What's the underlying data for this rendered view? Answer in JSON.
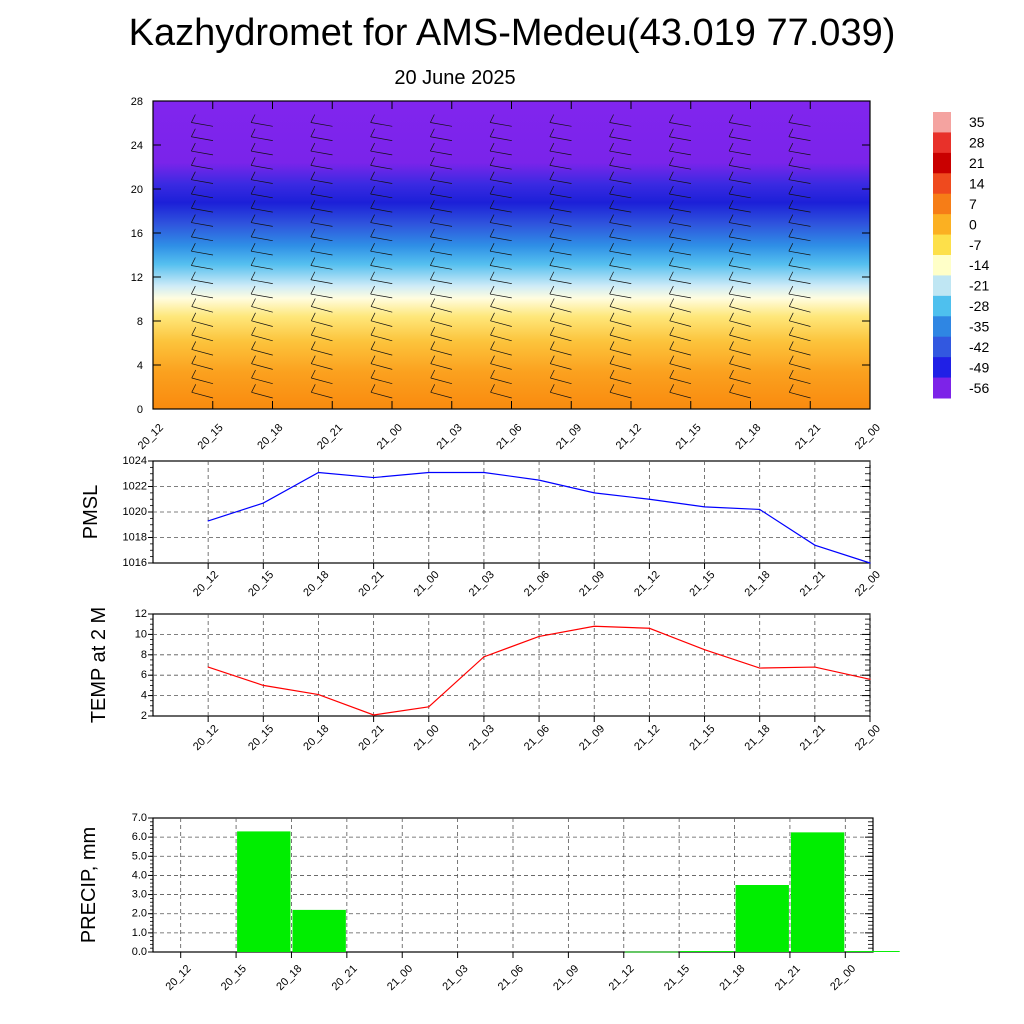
{
  "title": "Kazhydromet for AMS-Medeu(43.019 77.039)",
  "subtitle": "20 June 2025",
  "chart_data": [
    {
      "type": "heatmap",
      "name": "upper-air cross-section",
      "x": [
        "20_12",
        "20_15",
        "20_18",
        "20_21",
        "21_00",
        "21_03",
        "21_06",
        "21_09",
        "21_12",
        "21_15",
        "21_18",
        "21_21",
        "22_00"
      ],
      "ylim": [
        0,
        28
      ],
      "yticks": [
        0,
        4,
        8,
        12,
        16,
        20,
        24,
        28
      ],
      "colorbar": {
        "labels": [
          "35",
          "28",
          "21",
          "14",
          "7",
          "0",
          "-7",
          "-14",
          "-21",
          "-28",
          "-35",
          "-42",
          "-49",
          "-56"
        ],
        "colors": [
          "#f4a3a0",
          "#e8312a",
          "#c90000",
          "#ef4a1e",
          "#f67d17",
          "#fbb022",
          "#fde04a",
          "#ffffc8",
          "#bfe6f3",
          "#4ec0ee",
          "#2f86e3",
          "#3258e0",
          "#2020e6",
          "#7d23e8"
        ]
      },
      "wind_barbs": true
    },
    {
      "type": "line",
      "ylabel": "PMSL",
      "x": [
        "20_12",
        "20_15",
        "20_18",
        "20_21",
        "21_00",
        "21_03",
        "21_06",
        "21_09",
        "21_12",
        "21_15",
        "21_18",
        "21_21",
        "22_00"
      ],
      "values": [
        1019.3,
        1020.7,
        1023.1,
        1022.7,
        1023.1,
        1023.1,
        1022.5,
        1021.5,
        1021.0,
        1020.4,
        1020.2,
        1017.4,
        1016.0
      ],
      "ylim": [
        1016,
        1024
      ],
      "yticks": [
        1016,
        1018,
        1020,
        1022,
        1024
      ],
      "color": "#0000ff",
      "grid": true
    },
    {
      "type": "line",
      "ylabel": "TEMP at 2 M",
      "x": [
        "20_12",
        "20_15",
        "20_18",
        "20_21",
        "21_00",
        "21_03",
        "21_06",
        "21_09",
        "21_12",
        "21_15",
        "21_18",
        "21_21",
        "22_00"
      ],
      "values": [
        6.8,
        5.0,
        4.1,
        2.1,
        2.9,
        7.8,
        9.8,
        10.8,
        10.6,
        8.5,
        6.7,
        6.8,
        5.6
      ],
      "ylim": [
        2,
        12
      ],
      "yticks": [
        2,
        4,
        6,
        8,
        10,
        12
      ],
      "color": "#ff0000",
      "grid": true
    },
    {
      "type": "bar",
      "ylabel": "PRECIP, mm",
      "categories": [
        "20_12",
        "20_15",
        "20_18",
        "20_21",
        "21_00",
        "21_03",
        "21_06",
        "21_09",
        "21_12",
        "21_15",
        "21_18",
        "21_21",
        "22_00"
      ],
      "values": [
        0,
        6.3,
        2.2,
        0,
        0,
        0,
        0,
        0,
        0.02,
        0.05,
        3.5,
        6.25,
        0.05
      ],
      "ylim": [
        0,
        7
      ],
      "yticks": [
        "0.0",
        "1.0",
        "2.0",
        "3.0",
        "4.0",
        "5.0",
        "6.0",
        "7.0"
      ],
      "color": "#00ee00",
      "grid": true
    }
  ]
}
